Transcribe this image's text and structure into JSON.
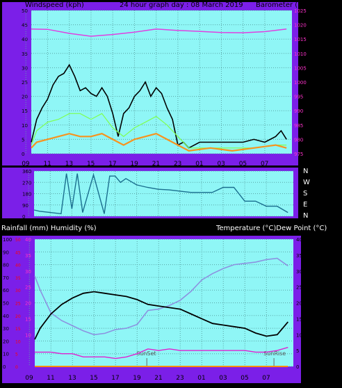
{
  "header": {
    "left_label": "Windspeed (kph)",
    "center_label": "24 hour graph day : 08 March 2019",
    "right_label": "Barometer (hpa)"
  },
  "middle_labels": {
    "left": "Rainfall (mm)  Humidity (%)",
    "right": "Temperature (°C)Dew Point (°C)"
  },
  "colors": {
    "frame": "#7b1fe8",
    "plot_bg": "#8ff6f6",
    "grid": "#5aa6a6",
    "wind_avg": "#f7931e",
    "wind_gust": "#000000",
    "wind_mid": "#7fff4f",
    "pressure": "#e040e0",
    "direction": "#1a6e8e",
    "temperature": "#000000",
    "humidity": "#8c92e0",
    "dewpoint": "#e020d0",
    "rain": "#ff8c00",
    "pink_axis": "#ff33cc",
    "red_axis": "#ff0000"
  },
  "chart_data": [
    {
      "type": "line",
      "name_hint": "wind-pressure",
      "x_ticks": [
        "11",
        "13",
        "15",
        "17",
        "19",
        "21",
        "23",
        "01",
        "03",
        "05",
        "07",
        "09"
      ],
      "left_axis": {
        "ticks": [
          0,
          5,
          10,
          15,
          20,
          25,
          30,
          35,
          40,
          45,
          50
        ],
        "ylim": [
          0,
          50
        ]
      },
      "right_axis": {
        "ticks": [
          975,
          980,
          985,
          990,
          995,
          1000,
          1005,
          1010,
          1015,
          1020,
          1025
        ],
        "ylim": [
          975,
          1025
        ]
      },
      "series": [
        {
          "key": "gust",
          "x_hours": [
            9.5,
            10,
            10.5,
            11,
            11.5,
            12,
            12.5,
            13,
            13.5,
            14,
            14.5,
            15,
            15.5,
            16,
            16.5,
            17,
            17.5,
            18,
            18.5,
            19,
            19.5,
            20,
            20.5,
            21,
            21.5,
            22,
            22.5,
            23,
            23.5,
            24,
            25,
            26,
            27,
            28,
            29,
            30,
            31,
            32,
            32.5,
            33
          ],
          "values": [
            4,
            12,
            16,
            19,
            24,
            27,
            28,
            31,
            27,
            22,
            23,
            21,
            20,
            23,
            20,
            14,
            6,
            14,
            16,
            20,
            22,
            25,
            20,
            23,
            21,
            16,
            12,
            3,
            4,
            2,
            4,
            4,
            4,
            4,
            4,
            5,
            4,
            6,
            8,
            5
          ]
        },
        {
          "key": "mid",
          "x_hours": [
            9.5,
            10,
            11,
            12,
            13,
            14,
            15,
            16,
            17,
            18,
            19,
            20,
            21,
            22,
            23,
            24,
            26,
            28,
            30,
            32,
            33
          ],
          "values": [
            3,
            8,
            11,
            12,
            14,
            14,
            12,
            14,
            9,
            6,
            9,
            11,
            13,
            10,
            6,
            2,
            2,
            2,
            2,
            3,
            3
          ]
        },
        {
          "key": "avg",
          "x_hours": [
            9.5,
            10,
            11,
            12,
            13,
            14,
            15,
            16,
            17,
            18,
            19,
            20,
            21,
            22,
            23,
            24,
            26,
            28,
            30,
            32,
            33
          ],
          "values": [
            2,
            4,
            5,
            6,
            7,
            6,
            6,
            7,
            5,
            3,
            5,
            6,
            7,
            5,
            3,
            1,
            2,
            1,
            2,
            3,
            2
          ]
        },
        {
          "key": "pressure",
          "x_hours": [
            9.5,
            11,
            13,
            15,
            17,
            19,
            21,
            23,
            25,
            27,
            29,
            31,
            33
          ],
          "values": [
            1018.5,
            1018.4,
            1017,
            1016,
            1016.6,
            1017.4,
            1018.5,
            1018,
            1017.7,
            1017.3,
            1017.2,
            1017.6,
            1018.5
          ]
        }
      ]
    },
    {
      "type": "line",
      "name_hint": "wind-direction",
      "x_ticks": [
        "11",
        "13",
        "15",
        "17",
        "19",
        "21",
        "23",
        "01",
        "03",
        "05",
        "07",
        "09"
      ],
      "left_axis": {
        "ticks": [
          0,
          90,
          180,
          270,
          360
        ],
        "ylim": [
          0,
          360
        ]
      },
      "right_labels": [
        "N",
        "W",
        "S",
        "E",
        "N"
      ],
      "series": [
        {
          "key": "direction",
          "x_hours": [
            9.5,
            10,
            11,
            12,
            12.5,
            13,
            13.5,
            14,
            15,
            16,
            16.5,
            17,
            17.5,
            18,
            19,
            20,
            21,
            22,
            23,
            24,
            25,
            26,
            27,
            28,
            29,
            30,
            31,
            32,
            33
          ],
          "values": [
            50,
            40,
            30,
            20,
            340,
            60,
            340,
            30,
            330,
            20,
            320,
            320,
            270,
            300,
            250,
            230,
            215,
            210,
            200,
            190,
            190,
            190,
            230,
            230,
            120,
            120,
            80,
            80,
            30
          ]
        }
      ]
    },
    {
      "type": "line",
      "name_hint": "temperature-humidity",
      "x_ticks": [
        "11",
        "13",
        "15",
        "17",
        "19",
        "21",
        "23",
        "01",
        "03",
        "05",
        "07",
        "09"
      ],
      "left_axis": {
        "ticks": [
          0,
          10,
          20,
          30,
          40,
          50,
          60,
          70,
          80,
          90,
          100
        ],
        "ylim": [
          0,
          100
        ]
      },
      "pink_axis": {
        "ticks": [
          10,
          15,
          20,
          25,
          30,
          35,
          40
        ],
        "ylim": [
          0,
          40
        ]
      },
      "red_axis": {
        "ticks": [
          0,
          5,
          10,
          15,
          20,
          25,
          30,
          35,
          40,
          45,
          50
        ]
      },
      "right_axis": {
        "ticks": [
          0,
          5,
          10,
          15,
          20,
          25,
          30,
          35,
          40
        ],
        "ylim": [
          0,
          40
        ]
      },
      "annotations": [
        "SunSet",
        "SunRise"
      ],
      "annotation_hours": [
        19.9,
        31.7
      ],
      "series": [
        {
          "key": "temperature",
          "x_hours": [
            9.5,
            10,
            11,
            12,
            13,
            14,
            15,
            16,
            17,
            18,
            19,
            20,
            21,
            22,
            23,
            24,
            25,
            26,
            27,
            28,
            29,
            30,
            31,
            32,
            33
          ],
          "values": [
            8.5,
            12,
            16.5,
            19.5,
            21.5,
            23,
            23.5,
            23,
            22.5,
            22,
            21,
            19.5,
            19,
            18.5,
            18,
            16.5,
            15,
            13.5,
            13,
            12.5,
            12,
            10.5,
            9.5,
            10,
            14
          ]
        },
        {
          "key": "humidity",
          "x_hours": [
            9.5,
            10,
            11,
            12,
            13,
            14,
            15,
            16,
            17,
            18,
            19,
            20,
            21,
            22,
            23,
            24,
            25,
            26,
            27,
            28,
            29,
            30,
            31,
            32,
            33
          ],
          "values": [
            71,
            60,
            42,
            36,
            32,
            28,
            25,
            26,
            29,
            30,
            33,
            44,
            45,
            48,
            52,
            59,
            68,
            73,
            77,
            80,
            81,
            82,
            84,
            85,
            79
          ]
        },
        {
          "key": "dewpoint",
          "x_hours": [
            9.5,
            10,
            11,
            12,
            13,
            14,
            15,
            16,
            17,
            18,
            19,
            20,
            21,
            22,
            23,
            24,
            25,
            26,
            27,
            28,
            29,
            30,
            31,
            32,
            33
          ],
          "values": [
            4.5,
            4.5,
            4.5,
            4,
            4,
            3,
            3,
            3,
            2.5,
            3,
            4,
            5.5,
            5,
            5.5,
            5,
            5,
            5,
            5,
            5,
            5,
            5,
            4.5,
            4.5,
            5,
            6
          ]
        },
        {
          "key": "rain",
          "x_hours": [
            9.5,
            33
          ],
          "values": [
            0,
            0
          ]
        }
      ]
    }
  ]
}
